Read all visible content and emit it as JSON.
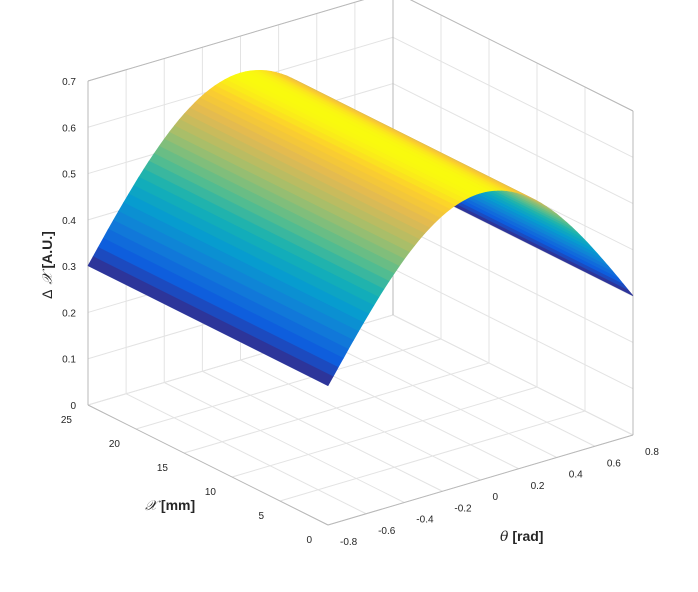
{
  "chart_data": {
    "type": "surface",
    "surface_function": "dx = 0.62 * cos(theta)^2 for theta in [-0.8, 0.8] rad; constant along x in [0, 25] mm",
    "colormap": "parula",
    "grid": true,
    "zlabel": "Δ 𝒳 [A.U.]",
    "xlabel": "𝒳 [mm]",
    "thetalabel": "θ [rad]",
    "zlabel_parts": {
      "delta": "Δ",
      "sym": "𝒳",
      "unit": " [A.U.]"
    },
    "xlabel_parts": {
      "sym": "𝒳",
      "unit": " [mm]"
    },
    "thetalabel_parts": {
      "sym": "θ",
      "unit": " [rad]"
    },
    "xlim": [
      0,
      25
    ],
    "thetalim": [
      -0.8,
      0.8
    ],
    "zlim": [
      0,
      0.7
    ],
    "x_ticks": [
      0,
      5,
      10,
      15,
      20,
      25
    ],
    "x_tick_labels": [
      "0",
      "5",
      "10",
      "15",
      "20",
      "25"
    ],
    "theta_ticks": [
      -0.8,
      -0.6,
      -0.4,
      -0.2,
      0,
      0.2,
      0.4,
      0.6,
      0.8
    ],
    "theta_tick_labels": [
      "-0.8",
      "-0.6",
      "-0.4",
      "-0.2",
      "0",
      "0.2",
      "0.4",
      "0.6",
      "0.8"
    ],
    "z_ticks": [
      0,
      0.1,
      0.2,
      0.3,
      0.4,
      0.5,
      0.6,
      0.7
    ],
    "z_tick_labels": [
      "0",
      "0.1",
      "0.2",
      "0.3",
      "0.4",
      "0.5",
      "0.6",
      "0.7"
    ]
  }
}
